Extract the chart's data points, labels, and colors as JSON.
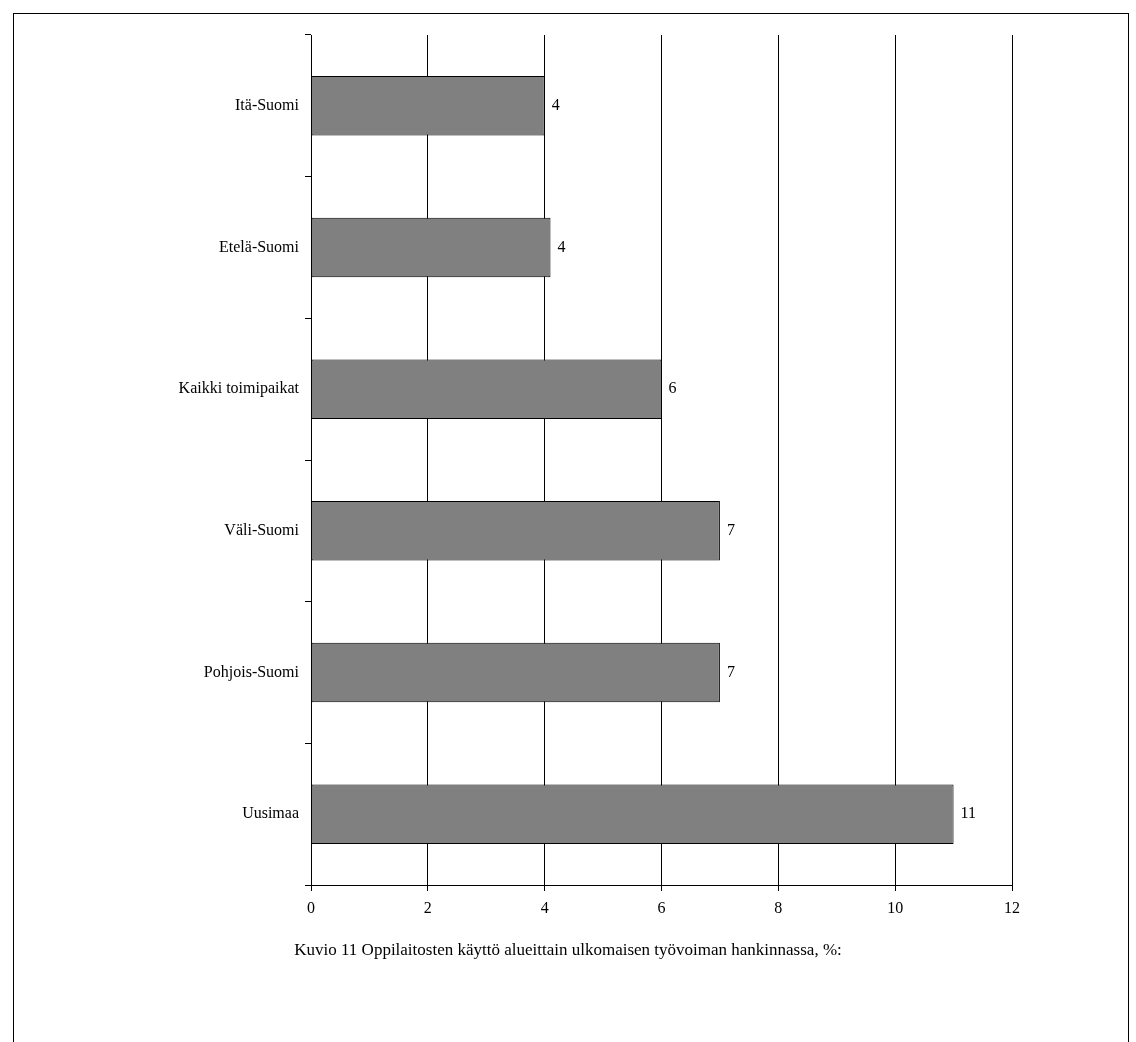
{
  "chart_data": {
    "type": "bar",
    "orientation": "horizontal",
    "categories": [
      "Itä-Suomi",
      "Etelä-Suomi",
      "Kaikki toimipaikat",
      "Väli-Suomi",
      "Pohjois-Suomi",
      "Uusimaa"
    ],
    "values": [
      4,
      4.1,
      6,
      7,
      7,
      11
    ],
    "value_labels": [
      "4",
      "4",
      "6",
      "7",
      "7",
      "11"
    ],
    "color": "#808080",
    "xlim": [
      0,
      12
    ],
    "xticks": [
      0,
      2,
      4,
      6,
      8,
      10,
      12
    ],
    "grid": "x",
    "legend": false,
    "annotations": [
      "Kuvio 11 Oppilaitosten käyttö alueittain ulkomaisen työvoiman hankinnassa, %:"
    ]
  }
}
